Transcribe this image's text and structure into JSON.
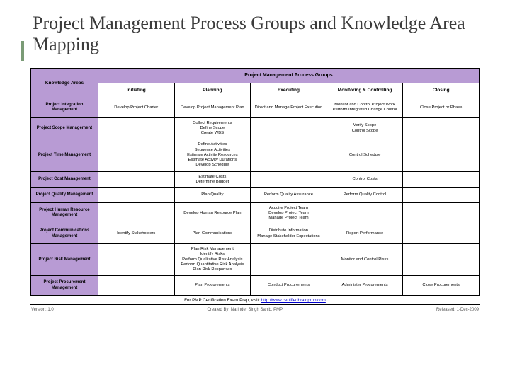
{
  "title": "Project Management Process Groups and Knowledge Area Mapping",
  "accent_color": "#7a9b76",
  "header_bg": "#b89bd4",
  "table": {
    "main_header": "Project Management Process Groups",
    "ka_header": "Knowledge Areas",
    "process_groups": [
      "Initiating",
      "Planning",
      "Executing",
      "Monitoring & Controlling",
      "Closing"
    ],
    "rows": [
      {
        "ka": "Project Integration Management",
        "cells": [
          "Develop Project Charter",
          "Develop Project Management Plan",
          "Direct and Manage Project Execution",
          "Monitor and Control Project Work\nPerform Integrated Change Control",
          "Close Project or Phase"
        ]
      },
      {
        "ka": "Project Scope Management",
        "cells": [
          "",
          "Collect Requirements\nDefine Scope\nCreate WBS",
          "",
          "Verify Scope\nControl Scope",
          ""
        ]
      },
      {
        "ka": "Project Time Management",
        "cells": [
          "",
          "Define Activities\nSequence Activities\nEstimate Activity Resources\nEstimate Activity Durations\nDevelop Schedule",
          "",
          "Control Schedule",
          ""
        ]
      },
      {
        "ka": "Project Cost Management",
        "cells": [
          "",
          "Estimate Costs\nDetermine Budget",
          "",
          "Control Costs",
          ""
        ]
      },
      {
        "ka": "Project Quality Management",
        "cells": [
          "",
          "Plan Quality",
          "Perform Quality Assurance",
          "Perform Quality Control",
          ""
        ]
      },
      {
        "ka": "Project Human Resource Management",
        "cells": [
          "",
          "Develop Human Resource Plan",
          "Acquire Project Team\nDevelop Project Team\nManage Project Team",
          "",
          ""
        ]
      },
      {
        "ka": "Project Communications Management",
        "cells": [
          "Identify Stakeholders",
          "Plan Communications",
          "Distribute Information\nManage Stakeholder Expectations",
          "Report Performance",
          ""
        ]
      },
      {
        "ka": "Project Risk Management",
        "cells": [
          "",
          "Plan Risk Management\nIdentify Risks\nPerform Qualitative Risk Analysis\nPerform Quantitative Risk Analysis\nPlan Risk Responses",
          "",
          "Monitor and Control Risks",
          ""
        ]
      },
      {
        "ka": "Project Procurement Management",
        "cells": [
          "",
          "Plan Procurements",
          "Conduct Procurements",
          "Administer Procurements",
          "Close Procurements"
        ]
      }
    ]
  },
  "footer": {
    "text_prefix": "For PMP Certification Exam Prep, visit: ",
    "link_text": "http://www.certifiedbrainpmp.com",
    "version": "Version: 1.0",
    "created_by": "Created By: Narinder Singh Sahib, PMP",
    "released": "Released: 1-Dec-2009"
  }
}
